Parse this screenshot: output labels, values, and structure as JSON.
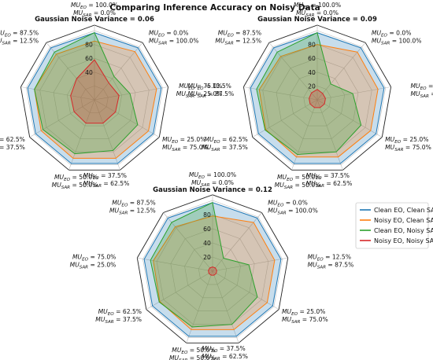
{
  "chart_data": {
    "type": "radar",
    "title": "Comparing Inference Accuracy on Noisy Data",
    "categories": [
      {
        "eo": "100.0%",
        "sar": "0.0%"
      },
      {
        "eo": "0.0%",
        "sar": "100.0%"
      },
      {
        "eo": "12.5%",
        "sar": "87.5%"
      },
      {
        "eo": "25.0%",
        "sar": "75.0%"
      },
      {
        "eo": "37.5%",
        "sar": "62.5%"
      },
      {
        "eo": "50.0%",
        "sar": "50.0%"
      },
      {
        "eo": "62.5%",
        "sar": "37.5%"
      },
      {
        "eo": "75.0%",
        "sar": "25.0%"
      },
      {
        "eo": "87.5%",
        "sar": "12.5%"
      }
    ],
    "radial_range": [
      0,
      100
    ],
    "legend_position": "right",
    "legend": [
      {
        "name": "Clean EO, Clean SAR",
        "color": "#1f77b4"
      },
      {
        "name": "Noisy EO, Clean SAR",
        "color": "#ff7f0e"
      },
      {
        "name": "Clean EO, Noisy SAR",
        "color": "#2ca02c"
      },
      {
        "name": "Noisy EO, Noisy SAR",
        "color": "#d62728"
      }
    ],
    "panels": [
      {
        "title": "Gaussian Noise Variance = 0.06",
        "ticks": [
          "40",
          "60",
          "80"
        ],
        "series": [
          {
            "name": "Clean EO, Clean SAR",
            "values": [
              97,
              98,
              98,
              98,
              98,
              98,
              98,
              98,
              98
            ]
          },
          {
            "name": "Noisy EO, Clean SAR",
            "values": [
              85,
              91,
              91,
              90,
              90,
              90,
              89,
              88,
              86
            ]
          },
          {
            "name": "Clean EO, Noisy SAR",
            "values": [
              97,
              44,
              52,
              72,
              78,
              83,
              86,
              88,
              90
            ]
          },
          {
            "name": "Noisy EO, Noisy SAR",
            "values": [
              58,
              32,
              36,
              35,
              36,
              36,
              34,
              35,
              40
            ]
          }
        ]
      },
      {
        "title": "Gaussian Noise Variance = 0.09",
        "ticks": [
          "20",
          "40",
          "60",
          "80"
        ],
        "series": [
          {
            "name": "Clean EO, Clean SAR",
            "values": [
              97,
              98,
              98,
              98,
              98,
              98,
              98,
              98,
              98
            ]
          },
          {
            "name": "Noisy EO, Clean SAR",
            "values": [
              80,
              90,
              89,
              89,
              88,
              88,
              86,
              85,
              82
            ]
          },
          {
            "name": "Clean EO, Noisy SAR",
            "values": [
              97,
              30,
              52,
              73,
              80,
              84,
              87,
              89,
              90
            ]
          },
          {
            "name": "Noisy EO, Noisy SAR",
            "values": [
              15,
              12,
              12,
              12,
              12,
              12,
              12,
              12,
              13
            ]
          }
        ]
      },
      {
        "title": "Gaussian Noise Variance = 0.12",
        "ticks": [
          "20",
          "40",
          "60",
          "80"
        ],
        "series": [
          {
            "name": "Clean EO, Clean SAR",
            "values": [
              97,
              98,
              98,
              98,
              98,
              98,
              98,
              98,
              98
            ]
          },
          {
            "name": "Noisy EO, Clean SAR",
            "values": [
              78,
              90,
              89,
              89,
              88,
              88,
              86,
              85,
              82
            ]
          },
          {
            "name": "Clean EO, Noisy SAR",
            "values": [
              97,
              24,
              52,
              73,
              80,
              84,
              87,
              89,
              90
            ]
          },
          {
            "name": "Noisy EO, Noisy SAR",
            "values": [
              6,
              6,
              6,
              6,
              6,
              6,
              6,
              6,
              6
            ]
          }
        ]
      }
    ]
  }
}
